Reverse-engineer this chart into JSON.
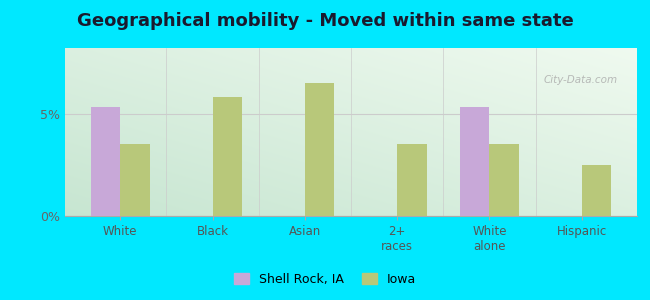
{
  "title": "Geographical mobility - Moved within same state",
  "categories": [
    "White",
    "Black",
    "Asian",
    "2+\nraces",
    "White\nalone",
    "Hispanic"
  ],
  "shell_rock_values": [
    5.3,
    0,
    0,
    0,
    5.3,
    0
  ],
  "iowa_values": [
    3.5,
    5.8,
    6.5,
    3.5,
    3.5,
    2.5
  ],
  "shell_rock_color": "#c8a8d8",
  "iowa_color": "#b8c87a",
  "shell_rock_label": "Shell Rock, IA",
  "iowa_label": "Iowa",
  "ylim": [
    0,
    8.2
  ],
  "ytick_labels": [
    "0%",
    "5%"
  ],
  "ytick_vals": [
    0,
    5
  ],
  "outer_background": "#00e8ff",
  "plot_bg_top": "#f0faf0",
  "plot_bg_bottom": "#d0ecd8",
  "title_fontsize": 13,
  "bar_width": 0.32,
  "watermark": "City-Data.com"
}
